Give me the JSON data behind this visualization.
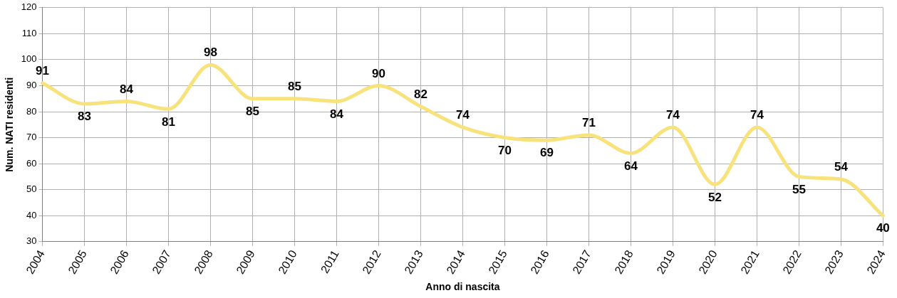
{
  "chart_data": {
    "type": "line",
    "xlabel": "Anno di nascita",
    "ylabel": "Num. NATI residenti",
    "categories": [
      "2004",
      "2005",
      "2006",
      "2007",
      "2008",
      "2009",
      "2010",
      "2011",
      "2012",
      "2013",
      "2014",
      "2015",
      "2016",
      "2017",
      "2018",
      "2019",
      "2020",
      "2021",
      "2022",
      "2023",
      "2024"
    ],
    "series": [
      {
        "color": "#f7e27c",
        "values": [
          91,
          83,
          84,
          81,
          98,
          85,
          85,
          84,
          90,
          82,
          74,
          70,
          69,
          71,
          64,
          74,
          52,
          74,
          55,
          54,
          40
        ]
      }
    ],
    "ylim": [
      30,
      120
    ],
    "yticks": [
      30,
      40,
      50,
      60,
      70,
      80,
      90,
      100,
      110,
      120
    ],
    "grid": true,
    "legend": false,
    "marker": "none",
    "line_style": "solid",
    "data_labels": true
  }
}
